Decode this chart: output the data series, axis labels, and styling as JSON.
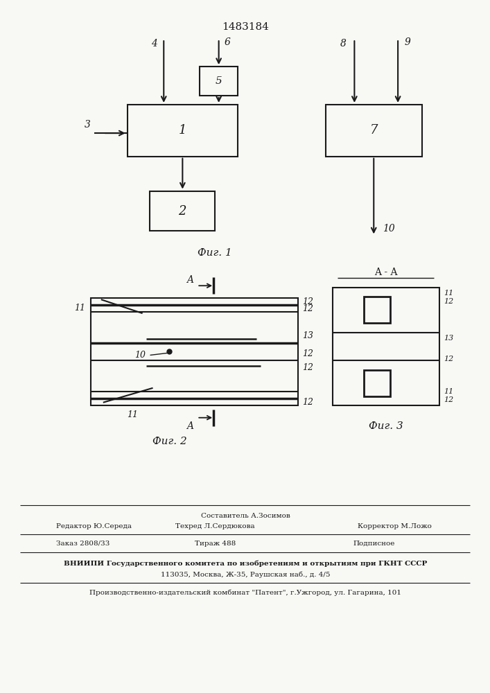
{
  "patent_number": "1483184",
  "bg_color": "#f8f8f5",
  "line_color": "#1a1a1a",
  "fig1_caption": "Фиг. 1",
  "fig2_caption": "Фиг. 2",
  "fig3_caption": "Фиг. 3",
  "footer": {
    "line1_center_top": "Составитель А.Зосимов",
    "line1_left": "Редактор Ю.Середа",
    "line1_center": "Техред Л.Сердюкова",
    "line1_right": "Корректор М.Ложо",
    "line2_left": "Заказ 2808/33",
    "line2_center": "Тираж 488",
    "line2_right": "Подписное",
    "line3": "ВНИИПИ Государственного комитета по изобретениям и открытиям при ГКНТ СССР",
    "line4": "113035, Москва, Ж-35, Раушская наб., д. 4/5",
    "line5": "Производственно-издательский комбинат \"Патент\", г.Ужгород, ул. Гагарина, 101"
  }
}
